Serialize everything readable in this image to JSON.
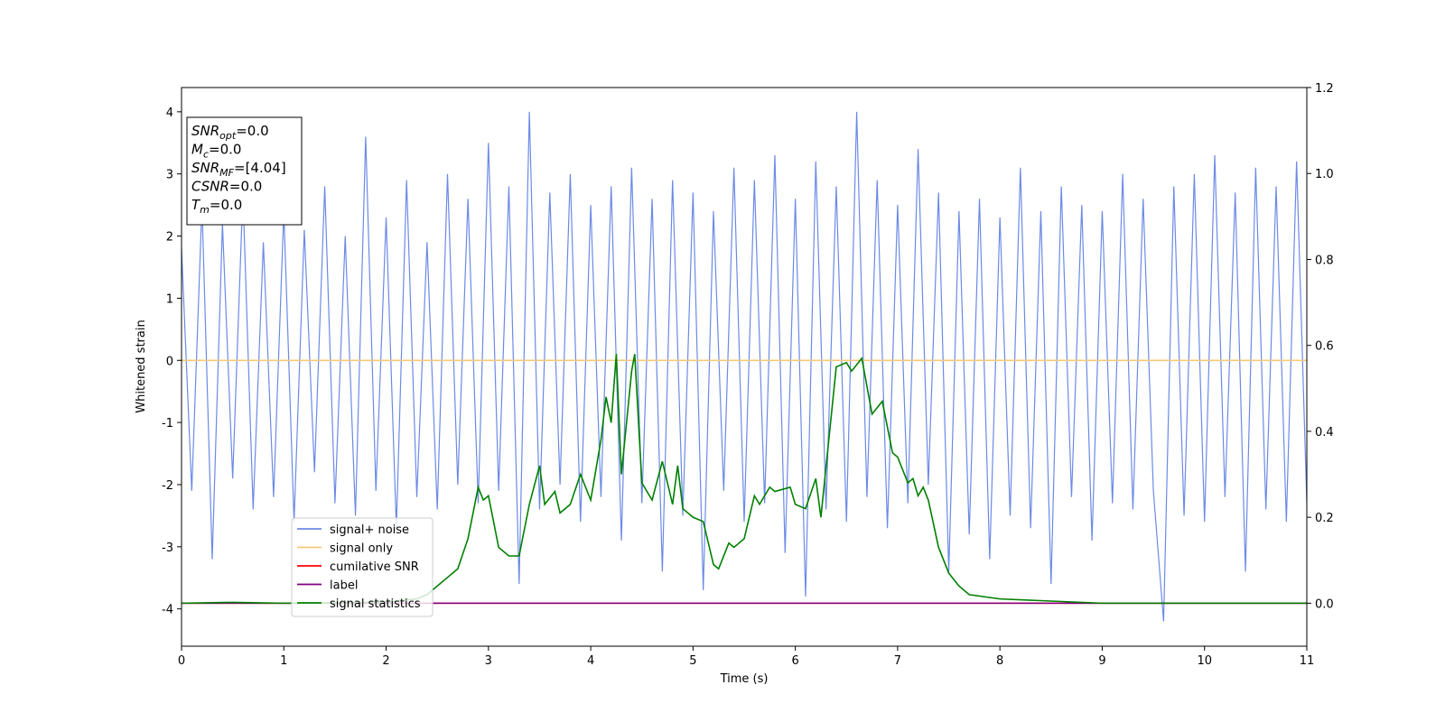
{
  "chart_data": {
    "type": "line",
    "xlabel": "Time (s)",
    "ylabel": "Whitened strain",
    "xlim": [
      0,
      11
    ],
    "xticks": [
      0,
      1,
      2,
      3,
      4,
      5,
      6,
      7,
      8,
      9,
      10,
      11
    ],
    "ylim": [
      -4.6,
      4.39
    ],
    "yticks": [
      -4,
      -3,
      -2,
      -1,
      0,
      1,
      2,
      3,
      4
    ],
    "y2lim": [
      -0.1,
      1.2
    ],
    "y2ticks": [
      {
        "value": 0,
        "label": "0.0"
      },
      0.2,
      0.4,
      0.6,
      0.8,
      {
        "value": 1,
        "label": "1.0"
      },
      1.2
    ],
    "legend": "lower left",
    "annotation": [
      {
        "main": "SNR",
        "sub": "opt",
        "rest": "=0.0"
      },
      {
        "main": "M",
        "sub": "c",
        "rest": "=0.0"
      },
      {
        "main": "SNR",
        "sub": "MF",
        "rest": "=[4.04]"
      },
      {
        "main": "CSNR",
        "rest": "=0.0"
      },
      {
        "main": "T",
        "sub": "m",
        "rest": "=0.0"
      }
    ],
    "series": [
      {
        "name": "signal+ noise",
        "color": "#6b8ae6",
        "x": [
          0,
          0.1,
          0.2,
          0.3,
          0.4,
          0.5,
          0.6,
          0.7,
          0.8,
          0.9,
          1,
          1.1,
          1.2,
          1.3,
          1.4,
          1.5,
          1.6,
          1.7,
          1.8,
          1.9,
          2,
          2.1,
          2.2,
          2.3,
          2.4,
          2.5,
          2.6,
          2.7,
          2.8,
          2.9,
          3,
          3.1,
          3.2,
          3.3,
          3.4,
          3.5,
          3.6,
          3.7,
          3.8,
          3.9,
          4,
          4.1,
          4.2,
          4.3,
          4.4,
          4.5,
          4.6,
          4.7,
          4.8,
          4.9,
          5,
          5.1,
          5.2,
          5.3,
          5.4,
          5.5,
          5.6,
          5.7,
          5.8,
          5.9,
          6,
          6.1,
          6.2,
          6.3,
          6.4,
          6.5,
          6.6,
          6.7,
          6.8,
          6.9,
          7,
          7.1,
          7.2,
          7.3,
          7.4,
          7.5,
          7.6,
          7.7,
          7.8,
          7.9,
          8,
          8.1,
          8.2,
          8.3,
          8.4,
          8.5,
          8.6,
          8.7,
          8.8,
          8.9,
          9,
          9.1,
          9.2,
          9.3,
          9.4,
          9.5,
          9.6,
          9.7,
          9.8,
          9.9,
          10,
          10.1,
          10.2,
          10.3,
          10.4,
          10.5,
          10.6,
          10.7,
          10.8,
          10.9,
          11
        ],
        "values": [
          1.8,
          -2.1,
          2.5,
          -3.2,
          2.2,
          -1.9,
          2.7,
          -2.4,
          1.9,
          -2.2,
          2.4,
          -2.6,
          2.1,
          -1.8,
          2.8,
          -2.3,
          2.0,
          -2.5,
          3.6,
          -2.1,
          2.3,
          -2.7,
          2.9,
          -2.2,
          1.9,
          -2.4,
          3.0,
          -2.0,
          2.6,
          -2.3,
          3.5,
          -2.1,
          2.8,
          -3.6,
          4.0,
          -2.4,
          2.7,
          -2.0,
          3.0,
          -2.6,
          2.5,
          -2.2,
          2.8,
          -2.9,
          3.1,
          -2.3,
          2.6,
          -3.4,
          2.9,
          -2.5,
          2.7,
          -3.7,
          2.4,
          -2.1,
          3.1,
          -2.6,
          2.9,
          -2.3,
          3.3,
          -3.1,
          2.6,
          -3.8,
          3.2,
          -2.4,
          2.8,
          -2.6,
          4.0,
          -2.2,
          2.9,
          -2.7,
          2.5,
          -2.3,
          3.4,
          -2.0,
          2.7,
          -3.4,
          2.4,
          -2.8,
          2.6,
          -3.2,
          2.3,
          -2.5,
          3.1,
          -2.7,
          2.4,
          -3.6,
          2.8,
          -2.2,
          2.5,
          -2.9,
          2.4,
          -2.3,
          3.0,
          -2.4,
          2.6,
          -2.1,
          -4.2,
          2.8,
          -2.5,
          3.0,
          -2.6,
          3.3,
          -2.2,
          2.7,
          -3.4,
          3.1,
          -2.4,
          2.8,
          -2.6,
          3.2,
          -2.3
        ]
      },
      {
        "name": "signal only",
        "color": "#f5c878",
        "x": [
          0,
          11
        ],
        "values": [
          0,
          0
        ]
      },
      {
        "name": "cumilative SNR",
        "color": "#ff0000",
        "axis": "y2",
        "x": [
          0,
          11
        ],
        "values": [
          0,
          0
        ]
      },
      {
        "name": "label",
        "color": "#800080",
        "axis": "y2",
        "x": [
          0,
          11
        ],
        "values": [
          0,
          0
        ]
      },
      {
        "name": "signal statistics",
        "color": "#008000",
        "axis": "y2",
        "x": [
          0,
          0.5,
          1,
          1.5,
          2,
          2.3,
          2.4,
          2.5,
          2.6,
          2.7,
          2.8,
          2.9,
          2.95,
          3.0,
          3.1,
          3.2,
          3.3,
          3.4,
          3.5,
          3.55,
          3.65,
          3.7,
          3.8,
          3.9,
          4.0,
          4.1,
          4.15,
          4.2,
          4.25,
          4.3,
          4.4,
          4.43,
          4.5,
          4.6,
          4.7,
          4.8,
          4.85,
          4.9,
          5.0,
          5.1,
          5.2,
          5.25,
          5.35,
          5.4,
          5.5,
          5.6,
          5.65,
          5.75,
          5.8,
          5.95,
          6.0,
          6.1,
          6.2,
          6.25,
          6.4,
          6.5,
          6.55,
          6.65,
          6.75,
          6.85,
          6.95,
          7.0,
          7.1,
          7.15,
          7.2,
          7.25,
          7.3,
          7.4,
          7.5,
          7.6,
          7.7,
          8.0,
          8.5,
          9.0,
          11
        ],
        "values": [
          0,
          0.002,
          0,
          0.001,
          0.003,
          0.01,
          0.02,
          0.04,
          0.06,
          0.08,
          0.15,
          0.27,
          0.24,
          0.25,
          0.13,
          0.11,
          0.11,
          0.23,
          0.32,
          0.23,
          0.26,
          0.21,
          0.23,
          0.3,
          0.24,
          0.38,
          0.48,
          0.42,
          0.58,
          0.3,
          0.54,
          0.58,
          0.28,
          0.24,
          0.33,
          0.23,
          0.32,
          0.22,
          0.2,
          0.19,
          0.09,
          0.08,
          0.14,
          0.13,
          0.15,
          0.25,
          0.23,
          0.27,
          0.26,
          0.27,
          0.23,
          0.22,
          0.29,
          0.2,
          0.55,
          0.56,
          0.54,
          0.57,
          0.44,
          0.47,
          0.35,
          0.34,
          0.28,
          0.29,
          0.25,
          0.27,
          0.24,
          0.13,
          0.07,
          0.04,
          0.02,
          0.01,
          0.005,
          0,
          0
        ]
      }
    ]
  }
}
